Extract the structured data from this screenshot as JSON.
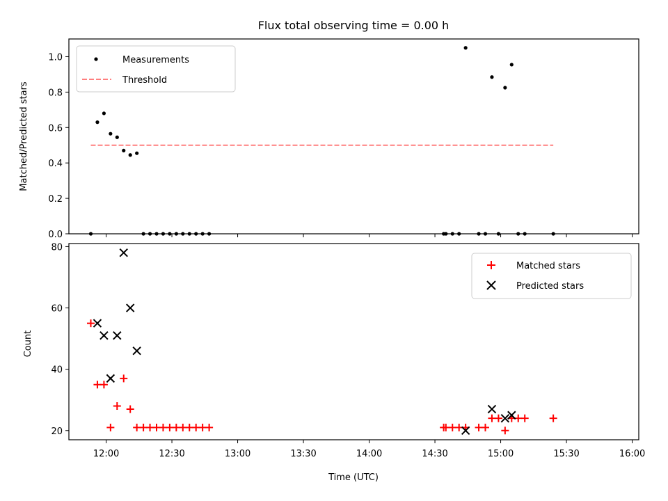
{
  "chart_data": [
    {
      "type": "scatter",
      "title": "Flux total observing time = 0.00 h",
      "xlabel": "",
      "ylabel": "Matched/Predicted stars",
      "xlim": [
        "11:43",
        "16:03"
      ],
      "ylim": [
        0,
        1.1
      ],
      "yticks": [
        "0.0",
        "0.2",
        "0.4",
        "0.6",
        "0.8",
        "1.0"
      ],
      "grid": false,
      "legend": {
        "placement": "upper-left",
        "entries": [
          {
            "label": "Measurements",
            "marker": "dot",
            "color": "#000000"
          },
          {
            "label": "Threshold",
            "marker": "dashed-line",
            "color": "#ff7f7f"
          }
        ]
      },
      "series": [
        {
          "name": "Measurements",
          "color": "#000000",
          "points": [
            {
              "x": "11:53",
              "y": 0.0
            },
            {
              "x": "11:56",
              "y": 0.63
            },
            {
              "x": "11:59",
              "y": 0.68
            },
            {
              "x": "12:02",
              "y": 0.565
            },
            {
              "x": "12:05",
              "y": 0.545
            },
            {
              "x": "12:08",
              "y": 0.47
            },
            {
              "x": "12:11",
              "y": 0.445
            },
            {
              "x": "12:14",
              "y": 0.455
            },
            {
              "x": "12:17",
              "y": 0.0
            },
            {
              "x": "12:20",
              "y": 0.0
            },
            {
              "x": "12:23",
              "y": 0.0
            },
            {
              "x": "12:26",
              "y": 0.0
            },
            {
              "x": "12:29",
              "y": 0.0
            },
            {
              "x": "12:32",
              "y": 0.0
            },
            {
              "x": "12:35",
              "y": 0.0
            },
            {
              "x": "12:38",
              "y": 0.0
            },
            {
              "x": "12:41",
              "y": 0.0
            },
            {
              "x": "12:44",
              "y": 0.0
            },
            {
              "x": "12:47",
              "y": 0.0
            },
            {
              "x": "14:34",
              "y": 0.0
            },
            {
              "x": "14:35",
              "y": 0.0
            },
            {
              "x": "14:38",
              "y": 0.0
            },
            {
              "x": "14:41",
              "y": 0.0
            },
            {
              "x": "14:44",
              "y": 1.05
            },
            {
              "x": "14:50",
              "y": 0.0
            },
            {
              "x": "14:53",
              "y": 0.0
            },
            {
              "x": "14:56",
              "y": 0.885
            },
            {
              "x": "14:59",
              "y": 0.0
            },
            {
              "x": "15:02",
              "y": 0.825
            },
            {
              "x": "15:05",
              "y": 0.955
            },
            {
              "x": "15:08",
              "y": 0.0
            },
            {
              "x": "15:11",
              "y": 0.0
            },
            {
              "x": "15:24",
              "y": 0.0
            }
          ]
        },
        {
          "name": "Threshold",
          "color": "#ff7f7f",
          "line": [
            {
              "x": "11:53",
              "y": 0.5
            },
            {
              "x": "15:24",
              "y": 0.5
            }
          ]
        }
      ]
    },
    {
      "type": "scatter",
      "title": "",
      "xlabel": "Time (UTC)",
      "ylabel": "Count",
      "xlim": [
        "11:43",
        "16:03"
      ],
      "ylim": [
        17,
        81
      ],
      "yticks": [
        "20",
        "40",
        "60",
        "80"
      ],
      "xticks": [
        "12:00",
        "12:30",
        "13:00",
        "13:30",
        "14:00",
        "14:30",
        "15:00",
        "15:30",
        "16:00"
      ],
      "grid": false,
      "legend": {
        "placement": "upper-right",
        "entries": [
          {
            "label": "Matched stars",
            "marker": "plus",
            "color": "#ff0000"
          },
          {
            "label": "Predicted stars",
            "marker": "x",
            "color": "#000000"
          }
        ]
      },
      "series": [
        {
          "name": "Matched stars",
          "color": "#ff0000",
          "points": [
            {
              "x": "11:53",
              "y": 55
            },
            {
              "x": "11:56",
              "y": 35
            },
            {
              "x": "11:59",
              "y": 35
            },
            {
              "x": "12:02",
              "y": 21
            },
            {
              "x": "12:05",
              "y": 28
            },
            {
              "x": "12:08",
              "y": 37
            },
            {
              "x": "12:11",
              "y": 27
            },
            {
              "x": "12:14",
              "y": 21
            },
            {
              "x": "12:17",
              "y": 21
            },
            {
              "x": "12:20",
              "y": 21
            },
            {
              "x": "12:23",
              "y": 21
            },
            {
              "x": "12:26",
              "y": 21
            },
            {
              "x": "12:29",
              "y": 21
            },
            {
              "x": "12:32",
              "y": 21
            },
            {
              "x": "12:35",
              "y": 21
            },
            {
              "x": "12:38",
              "y": 21
            },
            {
              "x": "12:41",
              "y": 21
            },
            {
              "x": "12:44",
              "y": 21
            },
            {
              "x": "12:47",
              "y": 21
            },
            {
              "x": "14:34",
              "y": 21
            },
            {
              "x": "14:35",
              "y": 21
            },
            {
              "x": "14:38",
              "y": 21
            },
            {
              "x": "14:41",
              "y": 21
            },
            {
              "x": "14:44",
              "y": 21
            },
            {
              "x": "14:50",
              "y": 21
            },
            {
              "x": "14:53",
              "y": 21
            },
            {
              "x": "14:56",
              "y": 24
            },
            {
              "x": "14:59",
              "y": 24
            },
            {
              "x": "15:02",
              "y": 20
            },
            {
              "x": "15:05",
              "y": 24
            },
            {
              "x": "15:08",
              "y": 24
            },
            {
              "x": "15:11",
              "y": 24
            },
            {
              "x": "15:24",
              "y": 24
            }
          ]
        },
        {
          "name": "Predicted stars",
          "color": "#000000",
          "points": [
            {
              "x": "11:56",
              "y": 55
            },
            {
              "x": "11:59",
              "y": 51
            },
            {
              "x": "12:02",
              "y": 37
            },
            {
              "x": "12:05",
              "y": 51
            },
            {
              "x": "12:08",
              "y": 78
            },
            {
              "x": "12:11",
              "y": 60
            },
            {
              "x": "12:14",
              "y": 46
            },
            {
              "x": "14:44",
              "y": 20
            },
            {
              "x": "14:56",
              "y": 27
            },
            {
              "x": "15:02",
              "y": 24
            },
            {
              "x": "15:05",
              "y": 25
            }
          ]
        }
      ]
    }
  ]
}
